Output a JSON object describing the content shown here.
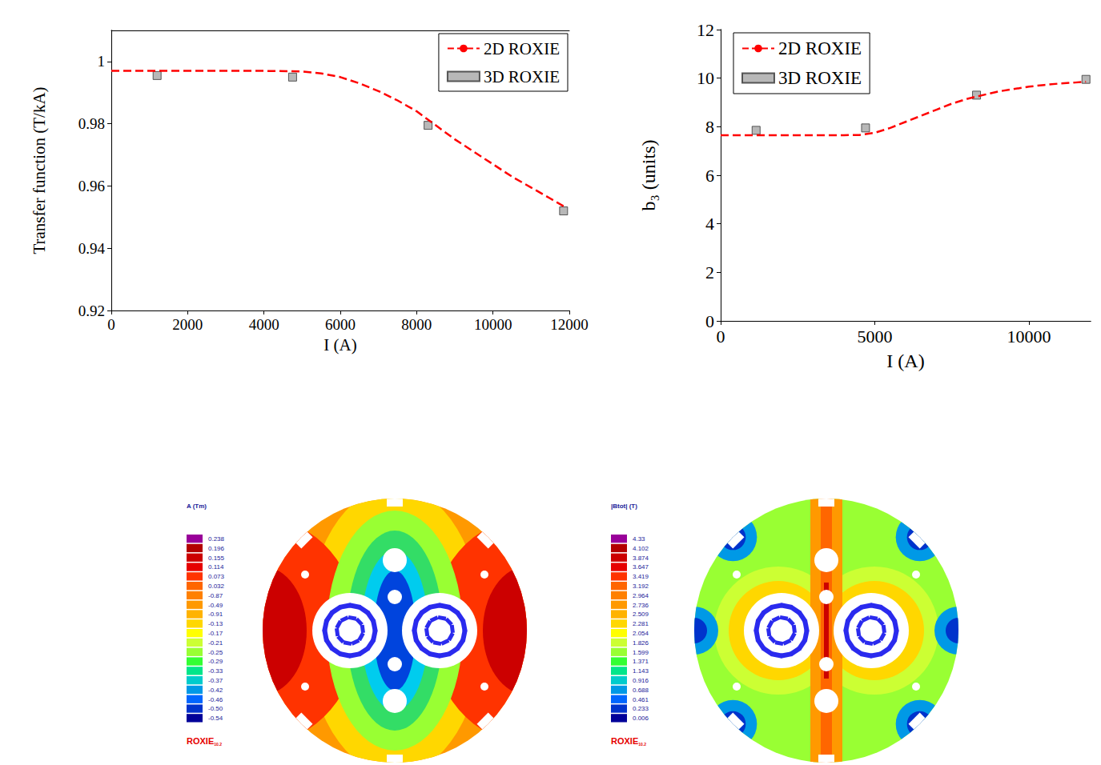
{
  "chart_data": [
    {
      "type": "line",
      "x_label": "I (A)",
      "y_label": "Transfer function (T/kA)",
      "xlim": [
        0,
        12000
      ],
      "xticks": [
        0,
        2000,
        4000,
        6000,
        8000,
        10000,
        12000
      ],
      "ylim": [
        0.92,
        1.01
      ],
      "yticks": [
        0.92,
        0.94,
        0.96,
        0.98,
        1
      ],
      "grid": false,
      "legend": "top-right",
      "series": [
        {
          "name": "2D ROXIE",
          "type": "line",
          "color": "#ff0000",
          "line_style": "dashed",
          "x": [
            0,
            1000,
            2000,
            3000,
            4000,
            5000,
            5500,
            6000,
            6500,
            7000,
            7500,
            8000,
            8500,
            9000,
            9500,
            10000,
            10500,
            11000,
            11500,
            11850
          ],
          "values": [
            0.997,
            0.997,
            0.997,
            0.997,
            0.997,
            0.9968,
            0.9962,
            0.995,
            0.993,
            0.9905,
            0.9875,
            0.984,
            0.9795,
            0.975,
            0.971,
            0.967,
            0.963,
            0.9595,
            0.956,
            0.9535
          ]
        },
        {
          "name": "3D ROXIE",
          "type": "scatter",
          "color": "#a6a6a6",
          "marker": "square",
          "x": [
            1200,
            4750,
            8300,
            11850
          ],
          "values": [
            0.9955,
            0.995,
            0.9795,
            0.952
          ]
        }
      ]
    },
    {
      "type": "line",
      "x_label": "I (A)",
      "y_label": "b₃ (units)",
      "xlim": [
        0,
        12000
      ],
      "xticks": [
        0,
        5000,
        10000
      ],
      "ylim": [
        0,
        12
      ],
      "yticks": [
        0,
        2,
        4,
        6,
        8,
        10,
        12
      ],
      "grid": false,
      "legend": "top-left",
      "series": [
        {
          "name": "2D ROXIE",
          "type": "line",
          "color": "#ff0000",
          "line_style": "dashed",
          "x": [
            0,
            1000,
            2000,
            3000,
            4000,
            4500,
            5000,
            5500,
            6000,
            6500,
            7000,
            7500,
            8000,
            8500,
            9000,
            9500,
            10000,
            10500,
            11000,
            11500,
            11850
          ],
          "values": [
            7.65,
            7.65,
            7.65,
            7.65,
            7.65,
            7.66,
            7.75,
            7.95,
            8.2,
            8.45,
            8.7,
            8.95,
            9.15,
            9.3,
            9.45,
            9.55,
            9.65,
            9.72,
            9.78,
            9.82,
            9.85
          ]
        },
        {
          "name": "3D ROXIE",
          "type": "scatter",
          "color": "#a6a6a6",
          "marker": "square",
          "x": [
            1150,
            4700,
            8300,
            11850
          ],
          "values": [
            7.85,
            7.95,
            9.3,
            9.95
          ]
        }
      ]
    }
  ],
  "field_maps": [
    {
      "colorbar_title": "A (Tm)",
      "colorbar_labels": [
        0.238,
        0.196,
        0.155,
        0.114,
        0.073,
        0.032,
        -0.87,
        -0.49,
        -0.91,
        -0.13,
        -0.17,
        -0.21,
        -0.25,
        -0.29,
        -0.33,
        -0.37,
        -0.42,
        -0.46,
        {
          "value": -0.5,
          "label": "-0.50"
        },
        -0.54
      ],
      "footer": "ROXIE",
      "footer_version": "10.2"
    },
    {
      "colorbar_title": "|Btot| (T)",
      "colorbar_labels": [
        4.33,
        4.102,
        3.874,
        3.647,
        3.419,
        3.192,
        2.964,
        2.736,
        2.509,
        2.281,
        2.054,
        1.826,
        1.599,
        1.371,
        1.143,
        0.916,
        0.688,
        0.461,
        0.233,
        0.006
      ],
      "footer": "ROXIE",
      "footer_version": "10.2"
    }
  ]
}
